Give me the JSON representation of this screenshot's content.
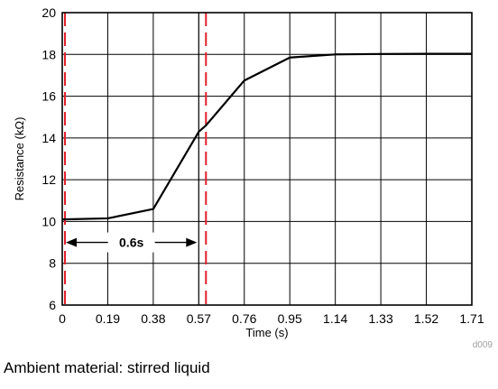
{
  "chart_data": {
    "type": "line",
    "xlabel": "Time (s)",
    "ylabel": "Resistance (kΩ)",
    "xlim": [
      0,
      1.71
    ],
    "ylim": [
      6,
      20
    ],
    "x_ticks": [
      0,
      0.19,
      0.38,
      0.57,
      0.76,
      0.95,
      1.14,
      1.33,
      1.52,
      1.71
    ],
    "x_tick_labels": [
      "0",
      "0.19",
      "0.38",
      "0.57",
      "0.76",
      "0.95",
      "1.14",
      "1.33",
      "1.52",
      "1.71"
    ],
    "y_ticks": [
      6,
      8,
      10,
      12,
      14,
      16,
      18,
      20
    ],
    "y_tick_labels": [
      "6",
      "8",
      "10",
      "12",
      "14",
      "16",
      "18",
      "20"
    ],
    "grid": true,
    "series": [
      {
        "x": [
          0,
          0.19,
          0.38,
          0.57,
          0.6,
          0.76,
          0.95,
          1.14,
          1.33,
          1.52,
          1.71
        ],
        "y": [
          10.1,
          10.15,
          10.6,
          14.3,
          14.6,
          16.75,
          17.85,
          18.0,
          18.02,
          18.03,
          18.03
        ],
        "color": "#000000"
      }
    ],
    "markers": {
      "vertical_lines_x": [
        0,
        0.6
      ],
      "color": "#e0202a",
      "style": "dashed"
    },
    "annotation": {
      "label": "0.6s",
      "x_start": 0,
      "x_end": 0.6,
      "y": 9
    },
    "figure_id": "d009"
  },
  "caption": "Ambient material: stirred liquid"
}
